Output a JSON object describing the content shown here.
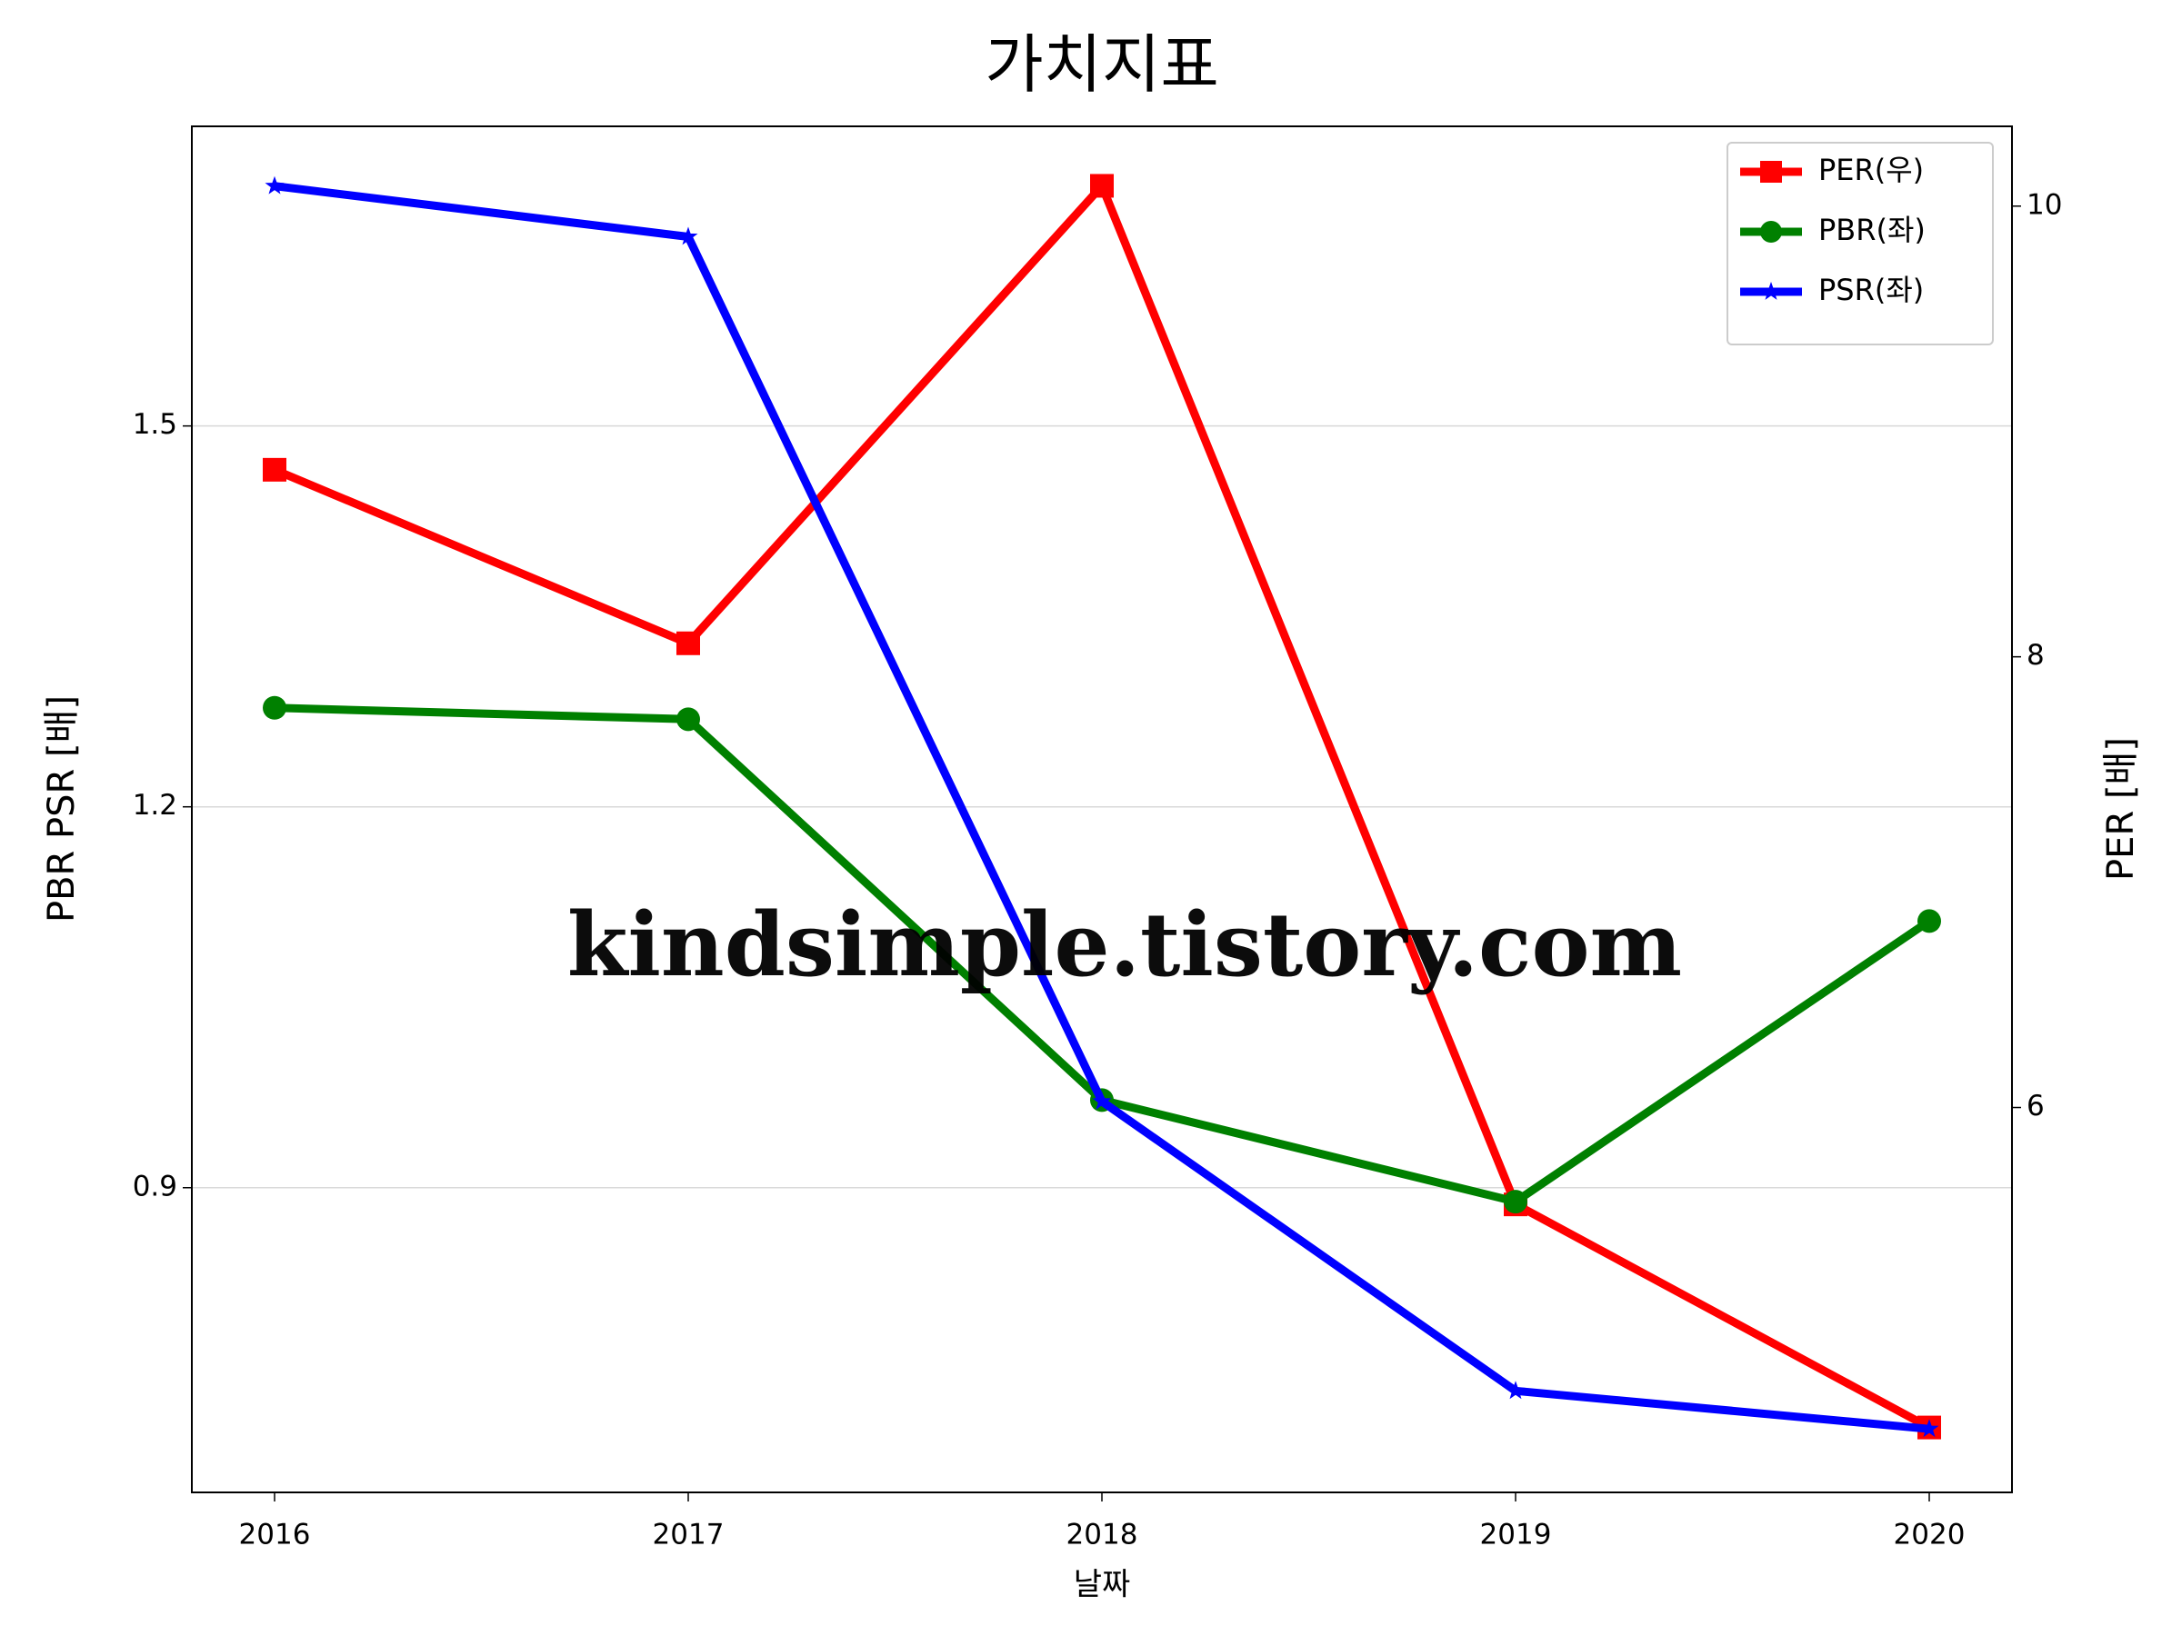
{
  "chart_data": {
    "type": "line",
    "title": "가치지표",
    "x_label": "날짜",
    "y_label": "PBR PSR [배]",
    "y2_label": "PER [배]",
    "y_label_color": "#008000",
    "y2_label_color": "#ff0000",
    "annotation": "kindsimple.tistory.com",
    "x": [
      2016,
      2017,
      2018,
      2019,
      2020
    ],
    "xlim": [
      2015.8,
      2020.2
    ],
    "xticks": [
      2016,
      2017,
      2018,
      2019,
      2020
    ],
    "ylim": [
      0.66,
      1.736
    ],
    "yticks": [
      0.9,
      1.2,
      1.5
    ],
    "y2lim": [
      4.292,
      10.354
    ],
    "y2ticks": [
      6,
      8,
      10
    ],
    "grid": true,
    "legend": "upper right",
    "series": [
      {
        "name": "PER(우)",
        "color": "#ff0000",
        "marker": "square",
        "axis": "y2",
        "values": [
          8.83,
          8.06,
          10.09,
          5.57,
          4.58
        ]
      },
      {
        "name": "PBR(좌)",
        "color": "#008000",
        "marker": "circle",
        "values": [
          1.278,
          1.269,
          0.969,
          0.889,
          1.11
        ]
      },
      {
        "name": "PSR(좌)",
        "color": "#0000ff",
        "marker": "star",
        "values": [
          1.689,
          1.649,
          0.968,
          0.74,
          0.71
        ]
      }
    ]
  }
}
